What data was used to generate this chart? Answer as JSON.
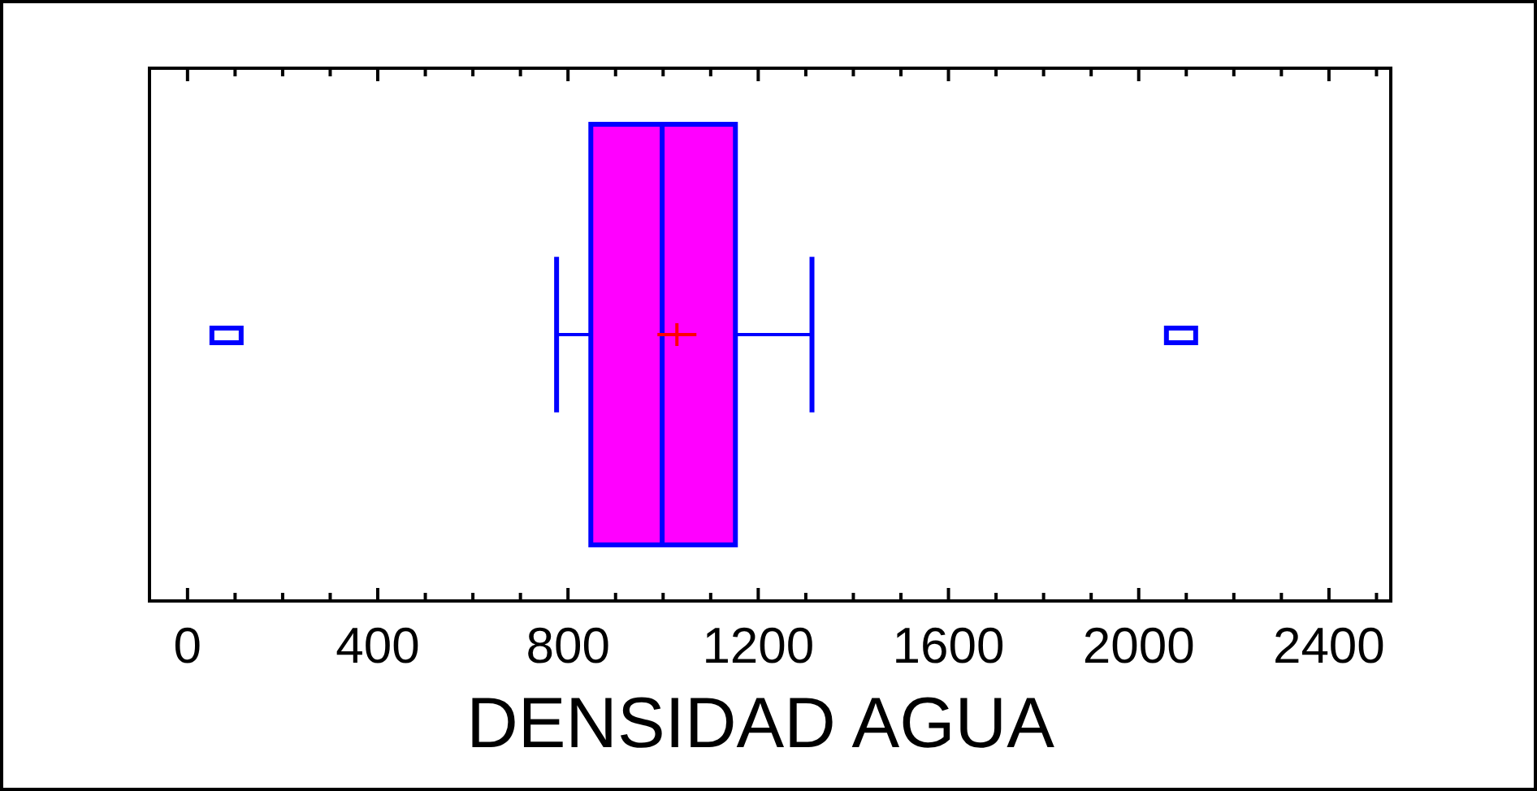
{
  "chart_data": {
    "type": "box",
    "xlabel": "DENSIDAD AGUA",
    "orientation": "horizontal",
    "categories": [
      null
    ],
    "boxes": [
      {
        "low": 776,
        "q1": 848,
        "median": 998,
        "q3": 1152,
        "high": 1313,
        "mean": 1029,
        "outliers": [
          82,
          2089
        ]
      }
    ],
    "color": "#ff00ff",
    "xlim": [
      -80,
      2530
    ],
    "xticks": [
      0,
      400,
      800,
      1200,
      1600,
      2000,
      2400
    ],
    "grid": false
  }
}
